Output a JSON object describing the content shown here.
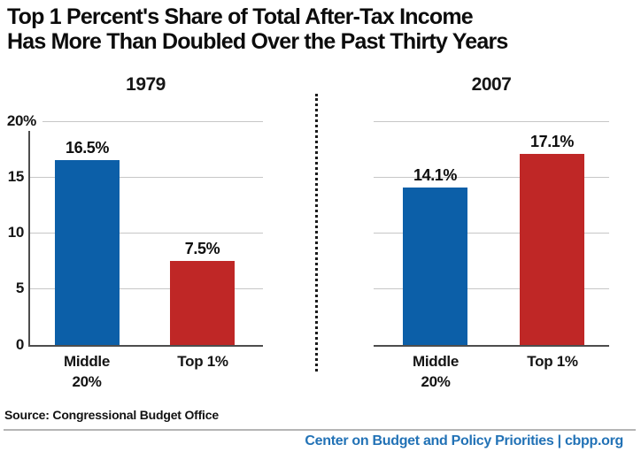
{
  "title": {
    "line1": "Top 1 Percent's Share of Total After-Tax Income",
    "line2": "Has More Than Doubled Over the Past Thirty Years"
  },
  "axis": {
    "ymax": 20,
    "ticks": [
      "20%",
      "15",
      "10",
      "5",
      "0"
    ],
    "gridlines": true
  },
  "chart_data": [
    {
      "type": "bar",
      "title": "1979",
      "categories": [
        "Middle 20%",
        "Top 1%"
      ],
      "values": [
        16.5,
        7.5
      ],
      "value_labels": [
        "16.5%",
        "7.5%"
      ],
      "ylim": [
        0,
        20
      ],
      "ylabel": "",
      "xlabel": "",
      "legend": "none"
    },
    {
      "type": "bar",
      "title": "2007",
      "categories": [
        "Middle 20%",
        "Top 1%"
      ],
      "values": [
        14.1,
        17.1
      ],
      "value_labels": [
        "14.1%",
        "17.1%"
      ],
      "ylim": [
        0,
        20
      ],
      "ylabel": "",
      "xlabel": "",
      "legend": "none"
    }
  ],
  "colors": {
    "blue_bar": "#0c5fa8",
    "red_bar": "#bf2726",
    "brand_blue": "#2272b6",
    "gridline": "#c7c7c7",
    "axis": "#4d4d4d"
  },
  "footer": {
    "source": "Source: Congressional Budget Office",
    "brand": "Center on Budget and Policy Priorities | cbpp.org"
  }
}
